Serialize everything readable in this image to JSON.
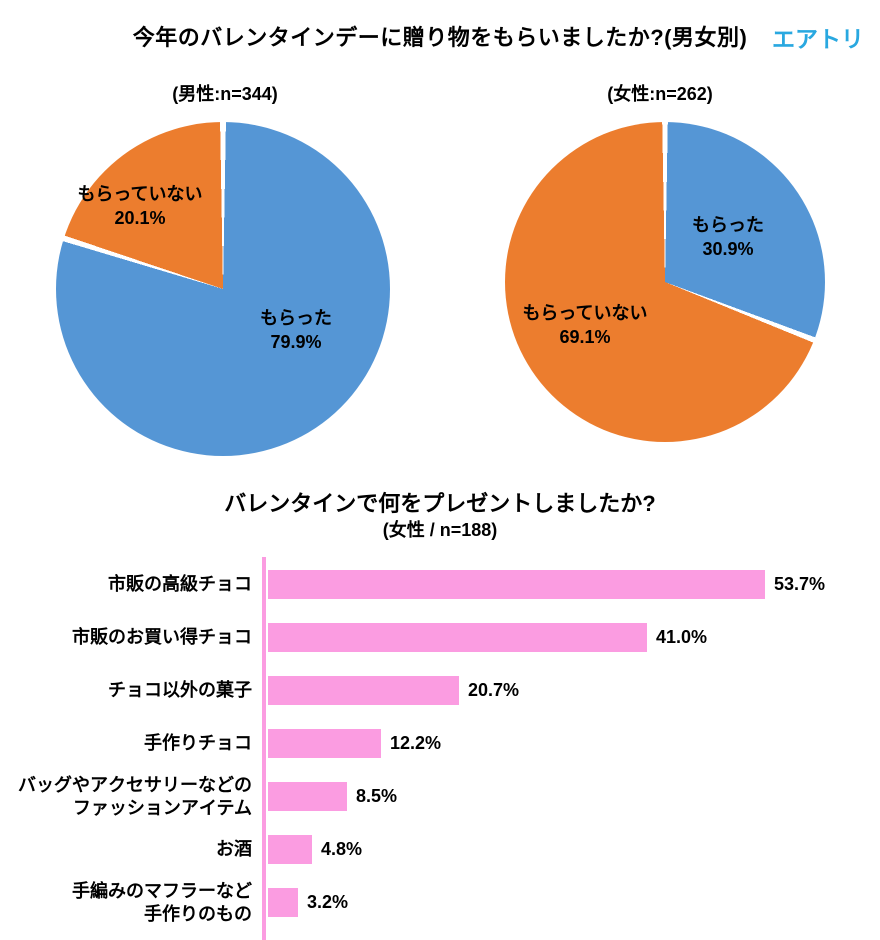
{
  "header": {
    "title": "今年のバレンタインデーに贈り物をもらいましたか?(男女別)",
    "logo": "エアトリ"
  },
  "colors": {
    "pie_blue": "#5596d5",
    "pie_orange": "#ec7d2e",
    "bar_pink": "#fb9ce1",
    "axis_pink": "#fb9ce1",
    "logo_blue": "#29a8e0",
    "text": "#000000",
    "background": "#ffffff"
  },
  "chart_data": [
    {
      "type": "pie",
      "title": "(男性:n=344)",
      "start_angle_deg": 0,
      "direction": "clockwise",
      "slices": [
        {
          "label": "もらった",
          "value": 79.9,
          "pct_label": "79.9%",
          "color": "#5596d5"
        },
        {
          "label": "もらっていない",
          "value": 20.1,
          "pct_label": "20.1%",
          "color": "#ec7d2e"
        }
      ]
    },
    {
      "type": "pie",
      "title": "(女性:n=262)",
      "start_angle_deg": 0,
      "direction": "clockwise",
      "slices": [
        {
          "label": "もらった",
          "value": 30.9,
          "pct_label": "30.9%",
          "color": "#5596d5"
        },
        {
          "label": "もらっていない",
          "value": 69.1,
          "pct_label": "69.1%",
          "color": "#ec7d2e"
        }
      ]
    },
    {
      "type": "bar",
      "orientation": "horizontal",
      "title": "バレンタインで何をプレゼントしましたか?",
      "subtitle": "(女性 / n=188)",
      "xlim": [
        0,
        60
      ],
      "grid": false,
      "legend": false,
      "bar_color": "#fb9ce1",
      "categories": [
        "市販の高級チョコ",
        "市販のお買い得チョコ",
        "チョコ以外の菓子",
        "手作りチョコ",
        "バッグやアクセサリーなどの\nファッションアイテム",
        "お酒",
        "手編みのマフラーなど\n手作りのもの"
      ],
      "values": [
        53.7,
        41.0,
        20.7,
        12.2,
        8.5,
        4.8,
        3.2
      ],
      "value_labels": [
        "53.7%",
        "41.0%",
        "20.7%",
        "12.2%",
        "8.5%",
        "4.8%",
        "3.2%"
      ]
    }
  ]
}
